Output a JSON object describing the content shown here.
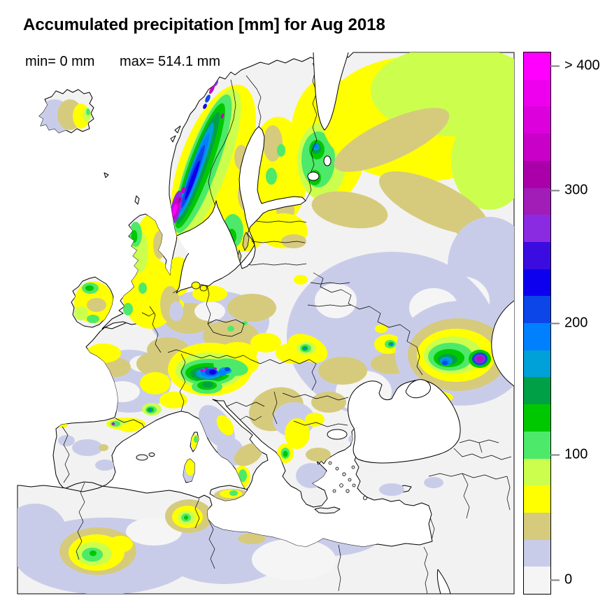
{
  "title": "Accumulated precipitation [mm] for Aug 2018",
  "stats": {
    "min_label": "min= 0 mm",
    "max_label": "max= 514.1 mm"
  },
  "colorbar": {
    "ticks": [
      {
        "label": "> 400"
      },
      {
        "label": "300"
      },
      {
        "label": "200"
      },
      {
        "label": "100"
      },
      {
        "label": "0"
      }
    ],
    "band_colors_bottom_to_top": [
      "#F5F5F5",
      "#C9CCE9",
      "#D6CB7D",
      "#FFFF00",
      "#CCFF4D",
      "#4DE96A",
      "#00C800",
      "#00A047",
      "#00A0D8",
      "#0080FF",
      "#0C46E8",
      "#0D00EE",
      "#3B0CE0",
      "#8A2BE2",
      "#A21CB8",
      "#AA00AA",
      "#C800C8",
      "#DC00DC",
      "#EE00EE",
      "#FF00FF"
    ]
  },
  "map": {
    "sea_color": "#FFFFFF",
    "land_color": "#F2F2F2",
    "coast_color": "#000000"
  }
}
